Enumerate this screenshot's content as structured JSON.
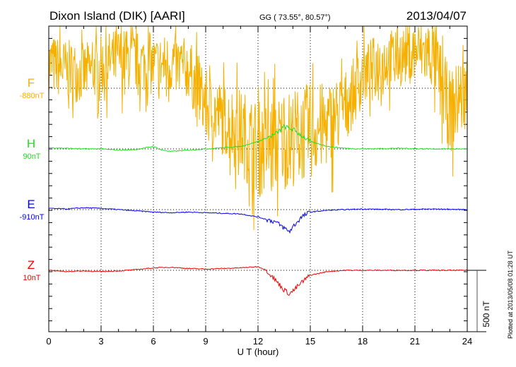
{
  "chart_data": {
    "type": "line",
    "title": "Dixon Island (DIK)  [AARI]",
    "coords": "GG ( 73.55°,  80.57°)",
    "date": "2013/04/07",
    "xlabel": "U T (hour)",
    "xlim": [
      0,
      24
    ],
    "xticks": [
      "0",
      "3",
      "6",
      "9",
      "12",
      "15",
      "18",
      "21",
      "24"
    ],
    "scale_label": "500 nT",
    "scale_nT": 500,
    "footer": "Plotted at 2013/05/08 01:28 UT",
    "series": [
      {
        "name": "F",
        "baseline_label": "-880nT",
        "color": "#f5b000",
        "hours": [
          0,
          1,
          2,
          3,
          4,
          5,
          6,
          7,
          8,
          9,
          10,
          11,
          12,
          13,
          14,
          15,
          16,
          17,
          18,
          19,
          20,
          21,
          22,
          23,
          24
        ],
        "values": [
          200,
          150,
          120,
          180,
          250,
          220,
          180,
          200,
          160,
          -150,
          -250,
          -350,
          -500,
          -450,
          -400,
          -350,
          -300,
          -150,
          100,
          220,
          250,
          300,
          280,
          -200,
          0
        ],
        "noise_nT": [
          250,
          250,
          250,
          250,
          250,
          250,
          250,
          250,
          250,
          300,
          300,
          350,
          400,
          400,
          400,
          400,
          350,
          300,
          250,
          250,
          250,
          250,
          300,
          350,
          300
        ]
      },
      {
        "name": "H",
        "baseline_label": "90nT",
        "color": "#22dd22",
        "hours": [
          0,
          1,
          2,
          3,
          4,
          5,
          6,
          6.5,
          7,
          8,
          9,
          10,
          11,
          12,
          12.5,
          13,
          13.5,
          14,
          14.5,
          15,
          16,
          17,
          18,
          20,
          22,
          24
        ],
        "values": [
          10,
          5,
          0,
          0,
          -10,
          -5,
          20,
          -10,
          -20,
          -10,
          0,
          10,
          20,
          60,
          90,
          120,
          180,
          160,
          110,
          60,
          20,
          5,
          0,
          5,
          0,
          0
        ]
      },
      {
        "name": "E",
        "baseline_label": "-910nT",
        "color": "#0000ee",
        "hours": [
          0,
          1,
          2,
          3,
          4,
          5,
          6,
          7,
          8,
          9,
          10,
          11,
          12,
          12.5,
          13,
          13.5,
          13.8,
          14,
          14.5,
          15,
          16,
          17,
          18,
          20,
          22,
          24
        ],
        "values": [
          10,
          5,
          15,
          10,
          0,
          -10,
          -20,
          -25,
          -20,
          -25,
          -30,
          -35,
          -60,
          -80,
          -100,
          -150,
          -180,
          -140,
          -60,
          -20,
          -5,
          0,
          5,
          0,
          5,
          0
        ]
      },
      {
        "name": "Z",
        "baseline_label": "10nT",
        "color": "#ee0000",
        "hours": [
          0,
          1,
          2,
          3,
          4,
          5,
          6,
          7,
          8,
          9,
          10,
          11,
          12,
          12.5,
          13,
          13.5,
          13.8,
          14,
          14.5,
          15,
          16,
          17,
          18,
          20,
          22,
          24
        ],
        "values": [
          0,
          -10,
          -5,
          -10,
          -5,
          5,
          20,
          25,
          15,
          10,
          15,
          20,
          30,
          0,
          -80,
          -160,
          -190,
          -170,
          -100,
          -40,
          -10,
          0,
          0,
          0,
          0,
          0
        ]
      }
    ]
  }
}
